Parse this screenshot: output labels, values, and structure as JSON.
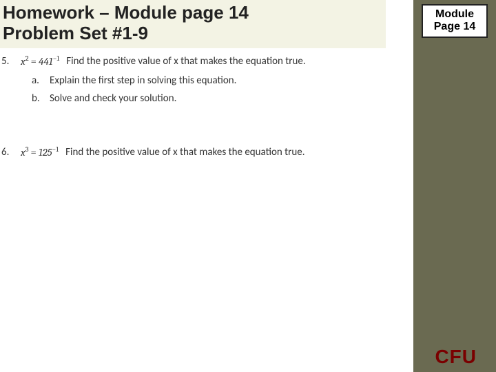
{
  "title_line1": "Homework – Module page 14",
  "title_line2": "Problem Set #1-9",
  "module_box_line1": "Module",
  "module_box_line2": "Page 14",
  "problems": {
    "p5": {
      "num": "5.",
      "expr_html": "x<sup>2</sup> = 441<sup>−1</sup>",
      "prompt": "Find the positive value of x that makes the equation true.",
      "a_label": "a.",
      "a_text": "Explain the first step in solving this equation.",
      "b_label": "b.",
      "b_text": "Solve and check your solution."
    },
    "p6": {
      "num": "6.",
      "expr_html": "x<sup>3</sup> = 125<sup>−1</sup>",
      "prompt": "Find the positive value of x that makes the equation true."
    }
  },
  "cfu": "CFU",
  "colors": {
    "sidebar": "#6a6a51",
    "title_bg": "#f3f3e4",
    "cfu_color": "#7a0000",
    "text": "#333333"
  }
}
